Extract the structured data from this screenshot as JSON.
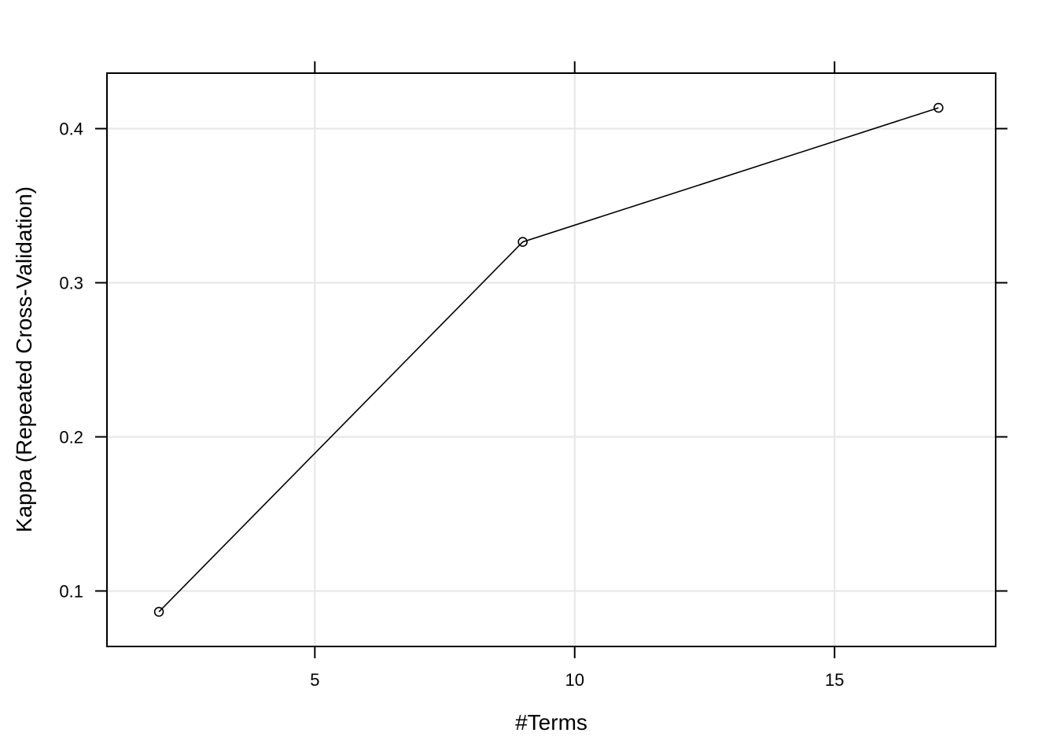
{
  "chart_data": {
    "type": "line",
    "title": "",
    "xlabel": "#Terms",
    "ylabel": "Kappa (Repeated Cross-Validation)",
    "x": [
      2,
      9,
      17
    ],
    "series": [
      {
        "values": [
          0.0865,
          0.3265,
          0.4135
        ]
      }
    ],
    "xlim": [
      1.0,
      18.1
    ],
    "ylim": [
      0.064,
      0.436
    ],
    "xticks": [
      5,
      10,
      15
    ],
    "xtick_labels": [
      "5",
      "10",
      "15"
    ],
    "yticks": [
      0.1,
      0.2,
      0.3,
      0.4
    ],
    "ytick_labels": [
      "0.1",
      "0.2",
      "0.3",
      "0.4"
    ],
    "grid": true,
    "legend": "none",
    "marker": "open-circle"
  }
}
